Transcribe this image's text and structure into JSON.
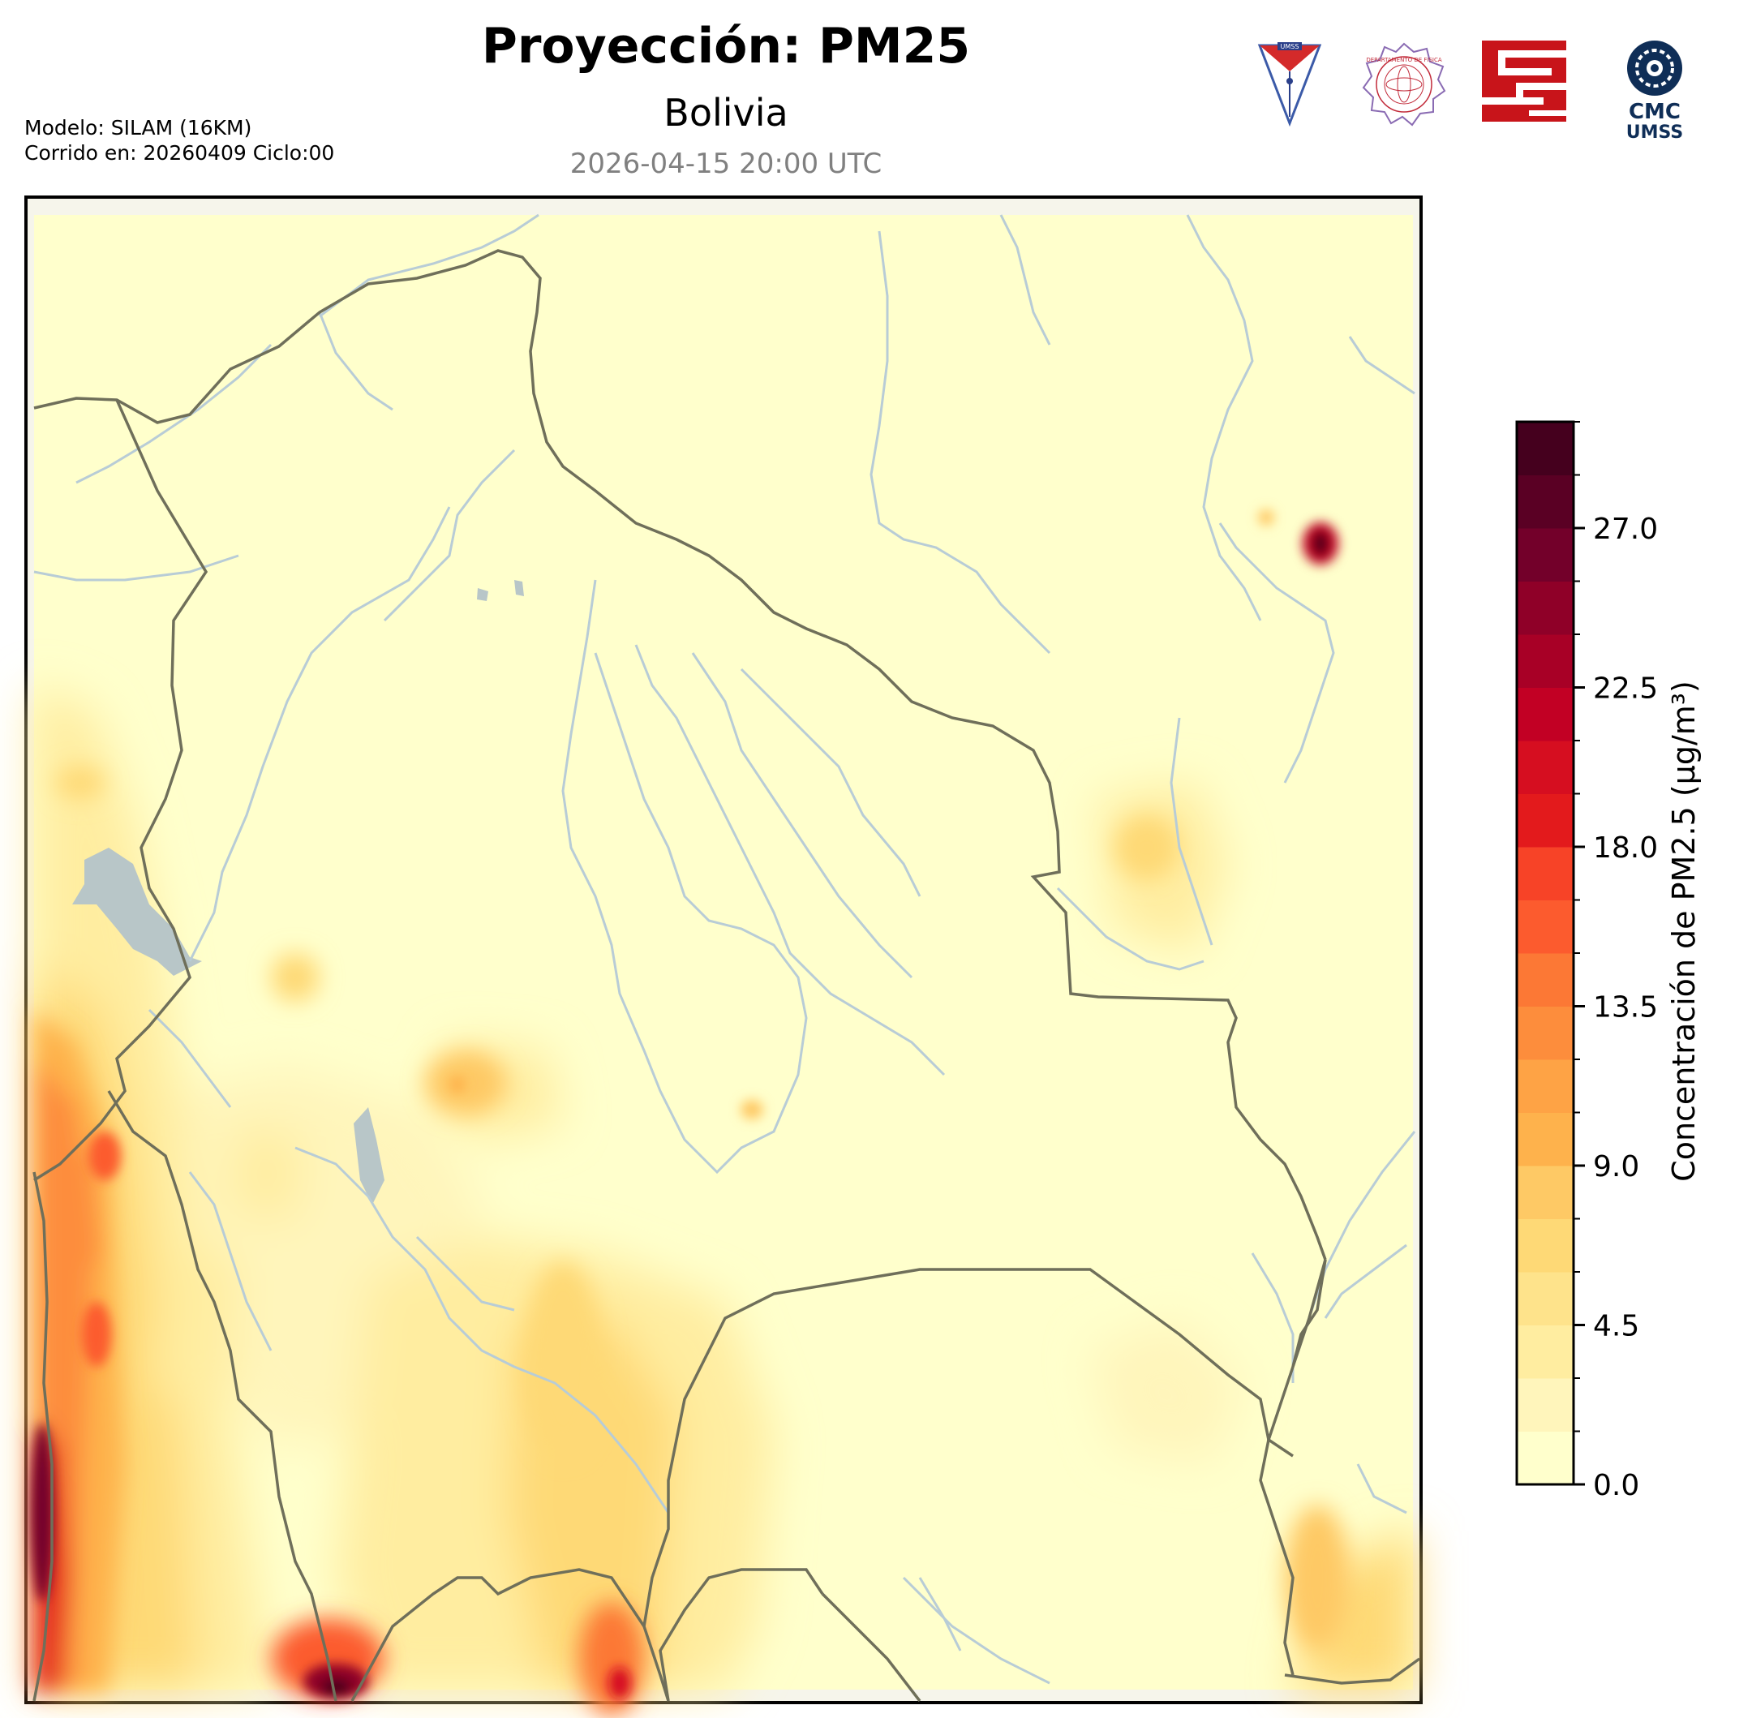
{
  "header": {
    "title": "Proyección: PM25",
    "subtitle": "Bolivia",
    "datetime": "2026-04-15 20:00 UTC"
  },
  "model_info": {
    "line1": "Modelo: SILAM (16KM)",
    "line2": "Corrido en: 20260409 Ciclo:00"
  },
  "logos": [
    {
      "name": "umss-shield-logo",
      "text": "UMSS"
    },
    {
      "name": "departamento-de-fisica-seal-logo",
      "text": "DEPARTAMENTO DE FISICA"
    },
    {
      "name": "red-fret-logo",
      "text": ""
    },
    {
      "name": "cmc-umss-logo",
      "text": "CMC UMSS"
    }
  ],
  "colorbar": {
    "label": "Concentración de PM2.5 (µg/m³)",
    "min": 0.0,
    "max": 30.0,
    "ticks": [
      "0.0",
      "4.5",
      "9.0",
      "13.5",
      "18.0",
      "22.5",
      "27.0"
    ],
    "tick_values": [
      0,
      4.5,
      9,
      13.5,
      18,
      22.5,
      27
    ],
    "levels": 20,
    "colors": [
      "#ffffcc",
      "#fff5bb",
      "#ffeda0",
      "#fee38b",
      "#fed976",
      "#fec965",
      "#feb24c",
      "#fea345",
      "#fd8d3c",
      "#fc7835",
      "#fc5b2e",
      "#f74327",
      "#e31a1c",
      "#d60e20",
      "#c20024",
      "#a80026",
      "#8f0028",
      "#73002a",
      "#5a0024",
      "#45001e"
    ]
  },
  "map": {
    "colors": {
      "background": "#ffffcc",
      "border": "#6f6f5a",
      "river": "#b8ccd6",
      "lake": "#b8c6c8"
    }
  }
}
